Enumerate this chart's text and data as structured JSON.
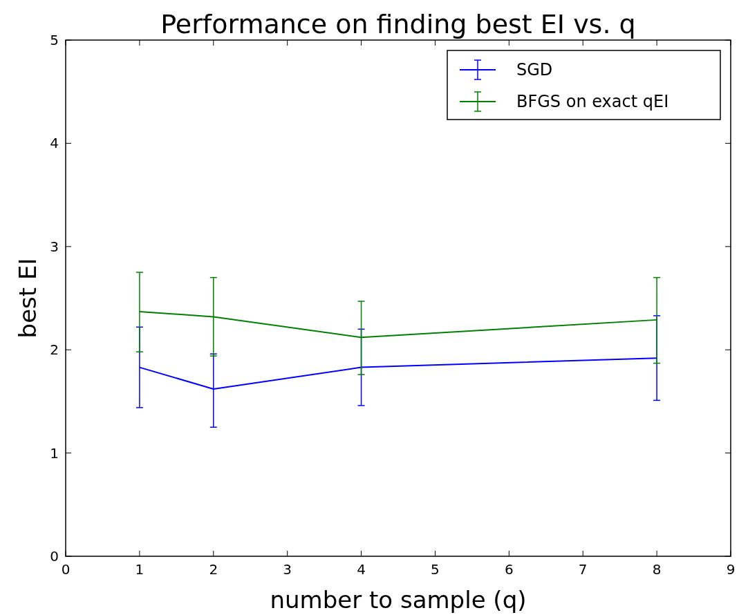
{
  "chart_data": {
    "type": "line",
    "title": "Performance on finding best EI vs. q",
    "xlabel": "number to sample (q)",
    "ylabel": "best EI",
    "x": [
      1,
      2,
      4,
      8
    ],
    "series": [
      {
        "name": "SGD",
        "color": "#0000ff",
        "values": [
          1.83,
          1.62,
          1.83,
          1.92
        ],
        "errors": [
          [
            1.44,
            2.22
          ],
          [
            1.25,
            1.96
          ],
          [
            1.46,
            2.2
          ],
          [
            1.51,
            2.33
          ]
        ]
      },
      {
        "name": "BFGS on exact qEI",
        "color": "#008000",
        "values": [
          2.37,
          2.32,
          2.12,
          2.29
        ],
        "errors": [
          [
            1.98,
            2.75
          ],
          [
            1.94,
            2.7
          ],
          [
            1.76,
            2.47
          ],
          [
            1.87,
            2.7
          ]
        ]
      }
    ],
    "xlim": [
      0,
      9
    ],
    "xticks": [
      0,
      1,
      2,
      3,
      4,
      5,
      6,
      7,
      8,
      9
    ],
    "ylim": [
      0,
      5
    ],
    "yticks": [
      0,
      1,
      2,
      3,
      4,
      5
    ],
    "legend": "top right",
    "marker": "none",
    "line_style": "solid"
  }
}
